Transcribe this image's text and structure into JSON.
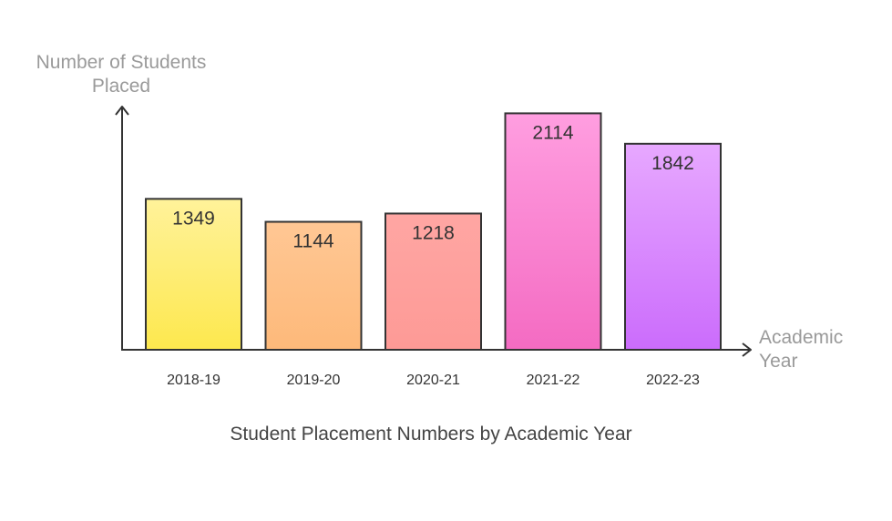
{
  "chart_data": {
    "type": "bar",
    "title": "Student Placement Numbers by Academic Year",
    "xlabel": "Academic Year",
    "ylabel": "Number of Students Placed",
    "categories": [
      "2018-19",
      "2019-20",
      "2020-21",
      "2021-22",
      "2022-23"
    ],
    "values": [
      1349,
      1144,
      1218,
      2114,
      1842
    ],
    "ylim": [
      0,
      2150
    ],
    "grid": false,
    "legend": "none",
    "colors": [
      [
        "#fff29a",
        "#fde84e"
      ],
      [
        "#ffc794",
        "#fdb97a"
      ],
      [
        "#ffa6a3",
        "#fd9a96"
      ],
      [
        "#ff9ee0",
        "#f46bc2"
      ],
      [
        "#e7a8ff",
        "#cb6cfc"
      ]
    ],
    "axis_color": "#333333",
    "value_label_color": "#333333",
    "tick_label_color": "#333333"
  }
}
